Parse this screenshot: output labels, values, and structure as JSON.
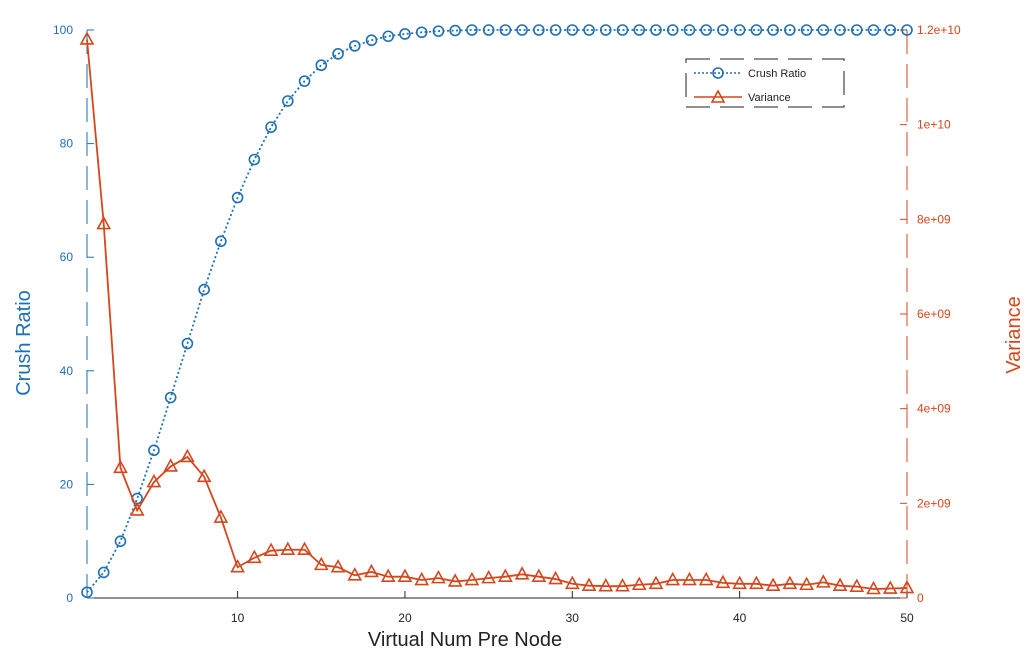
{
  "chart_data": {
    "type": "line",
    "title": "",
    "xlabel": "Virtual Num Pre Node",
    "ylabel_left": "Crush Ratio",
    "ylabel_right": "Variance",
    "xlim": [
      1,
      50
    ],
    "ylim_left": [
      0,
      100
    ],
    "ylim_right": [
      0,
      12000000000
    ],
    "xticks": [
      10,
      20,
      30,
      40,
      50
    ],
    "yticks_left": [
      0,
      20,
      40,
      60,
      80,
      100
    ],
    "yticks_right": [
      0,
      2000000000,
      4000000000,
      6000000000,
      8000000000,
      10000000000,
      12000000000
    ],
    "yticklabels_right": [
      "0",
      "2e+09",
      "4e+09",
      "6e+09",
      "8e+09",
      "1e+10",
      "1.2e+10"
    ],
    "grid": false,
    "legend_position": "top-right",
    "colors": {
      "crush": "#1f6fb4",
      "variance": "#d4471c",
      "frame": "#222222"
    },
    "x": [
      1,
      2,
      3,
      4,
      5,
      6,
      7,
      8,
      9,
      10,
      11,
      12,
      13,
      14,
      15,
      16,
      17,
      18,
      19,
      20,
      21,
      22,
      23,
      24,
      25,
      26,
      27,
      28,
      29,
      30,
      31,
      32,
      33,
      34,
      35,
      36,
      37,
      38,
      39,
      40,
      41,
      42,
      43,
      44,
      45,
      46,
      47,
      48,
      49,
      50
    ],
    "series": [
      {
        "name": "Crush Ratio",
        "axis": "left",
        "style": "dotted",
        "marker": "circle",
        "values": [
          1.0,
          4.5,
          10.0,
          17.5,
          26.0,
          35.3,
          44.8,
          54.3,
          62.8,
          70.5,
          77.2,
          82.9,
          87.5,
          91.0,
          93.8,
          95.8,
          97.2,
          98.2,
          98.9,
          99.3,
          99.6,
          99.8,
          99.9,
          100,
          100,
          100,
          100,
          100,
          100,
          100,
          100,
          100,
          100,
          100,
          100,
          100,
          100,
          100,
          100,
          100,
          100,
          100,
          100,
          100,
          100,
          100,
          100,
          100,
          100,
          100
        ]
      },
      {
        "name": "Variance",
        "axis": "right",
        "style": "solid",
        "marker": "triangle",
        "values": [
          11800000000,
          7900000000,
          2750000000,
          1850000000,
          2450000000,
          2780000000,
          2980000000,
          2560000000,
          1700000000,
          650000000,
          850000000,
          1000000000,
          1020000000,
          1020000000,
          700000000,
          650000000,
          480000000,
          550000000,
          450000000,
          450000000,
          380000000,
          420000000,
          350000000,
          380000000,
          420000000,
          450000000,
          500000000,
          450000000,
          400000000,
          300000000,
          260000000,
          250000000,
          250000000,
          280000000,
          300000000,
          380000000,
          380000000,
          380000000,
          320000000,
          300000000,
          300000000,
          260000000,
          300000000,
          280000000,
          330000000,
          260000000,
          240000000,
          190000000,
          200000000,
          210000000
        ]
      }
    ]
  }
}
